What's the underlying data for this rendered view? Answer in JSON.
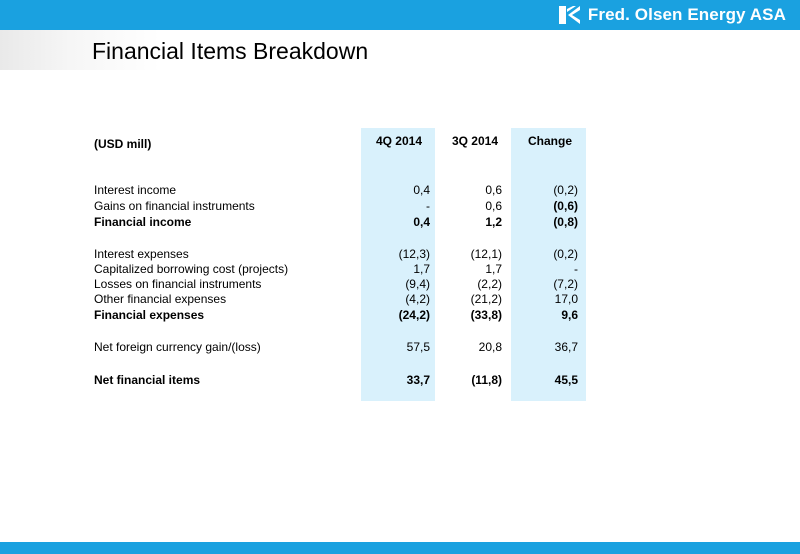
{
  "brand": {
    "name": "Fred. Olsen Energy ASA",
    "primary_color": "#1aa1e0",
    "highlight_color": "#d9f1fc",
    "logo_icon": "fred-olsen-emblem"
  },
  "page": {
    "title": "Financial Items Breakdown"
  },
  "table": {
    "unit_label": "(USD mill)",
    "columns": [
      "4Q 2014",
      "3Q 2014",
      "Change"
    ],
    "rows": [
      {
        "label": "Interest income",
        "values": [
          "0,4",
          "0,6",
          "(0,2)"
        ],
        "bold": false
      },
      {
        "label": "Gains on financial instruments",
        "values": [
          "-",
          "0,6",
          "(0,6)"
        ],
        "bold": false,
        "bold_change": true
      },
      {
        "label": "Financial income",
        "values": [
          "0,4",
          "1,2",
          "(0,8)"
        ],
        "bold": true
      },
      {
        "label": "Interest expenses",
        "values": [
          "(12,3)",
          "(12,1)",
          "(0,2)"
        ],
        "bold": false
      },
      {
        "label": "Capitalized borrowing cost (projects)",
        "values": [
          "1,7",
          "1,7",
          "-"
        ],
        "bold": false
      },
      {
        "label": "Losses on financial instruments",
        "values": [
          "(9,4)",
          "(2,2)",
          "(7,2)"
        ],
        "bold": false
      },
      {
        "label": "Other financial expenses",
        "values": [
          "(4,2)",
          "(21,2)",
          "17,0"
        ],
        "bold": false
      },
      {
        "label": "Financial expenses",
        "values": [
          "(24,2)",
          "(33,8)",
          "9,6"
        ],
        "bold": true
      },
      {
        "label": "Net foreign currency gain/(loss)",
        "values": [
          "57,5",
          "20,8",
          "36,7"
        ],
        "bold": false
      },
      {
        "label": "Net financial items",
        "values": [
          "33,7",
          "(11,8)",
          "45,5"
        ],
        "bold": true
      }
    ]
  }
}
